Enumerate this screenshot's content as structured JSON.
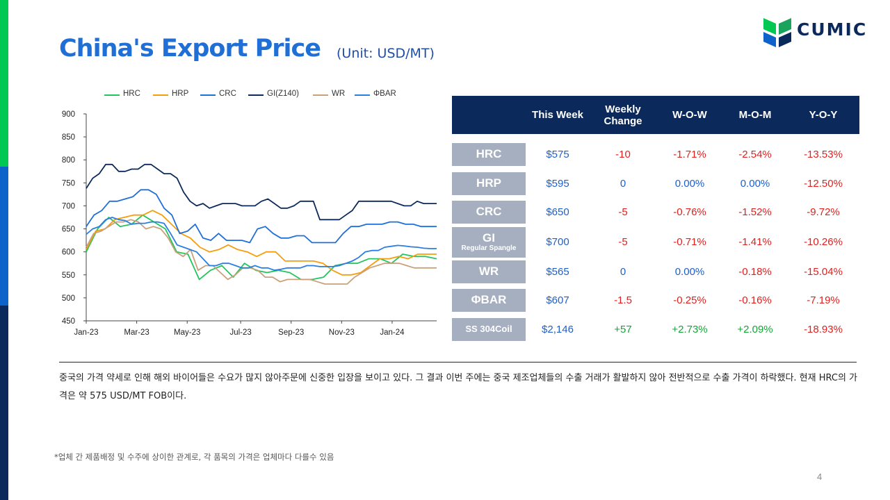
{
  "slide": {
    "title": "China's Export Price",
    "unit": "(Unit: USD/MT)",
    "logo_text": "CUMIC",
    "page_number": "4",
    "commentary": "중국의 가격 약세로 인해 해외 바이어들은 수요가 많지 않아주문에 신중한 입장을 보이고 있다. 그 결과 이번 주에는 중국 제조업체들의 수출 거래가 활발하지 않아 전반적으로 수출 가격이 하락했다. 현재 HRC의 가격은 약 575 USD/MT FOB이다.",
    "footnote": "*업체 간 제품배정 및 수주에 상이한 관계로, 각 품목의 가격은 업체마다 다를수 있음",
    "colors": {
      "accent_green": "#00c853",
      "accent_blue": "#0d63c9",
      "navy": "#0b2a5b",
      "title_blue": "#1f6fd6"
    }
  },
  "table": {
    "headers": [
      "This Week",
      "Weekly\nChange",
      "W-O-W",
      "M-O-M",
      "Y-O-Y"
    ],
    "rows": [
      {
        "label": "HRC",
        "sublabel": "",
        "this_week": "$575",
        "weekly_change": "-10",
        "wow": "-1.71%",
        "mom": "-2.54%",
        "yoy": "-13.53%",
        "change_color": "red",
        "wow_color": "red",
        "mom_color": "red"
      },
      {
        "label": "HRP",
        "sublabel": "",
        "this_week": "$595",
        "weekly_change": "0",
        "wow": "0.00%",
        "mom": "0.00%",
        "yoy": "-12.50%",
        "change_color": "blue",
        "wow_color": "blue",
        "mom_color": "blue"
      },
      {
        "label": "CRC",
        "sublabel": "",
        "this_week": "$650",
        "weekly_change": "-5",
        "wow": "-0.76%",
        "mom": "-1.52%",
        "yoy": "-9.72%",
        "change_color": "red",
        "wow_color": "red",
        "mom_color": "red"
      },
      {
        "label": "GI",
        "sublabel": "Regular Spangle",
        "this_week": "$700",
        "weekly_change": "-5",
        "wow": "-0.71%",
        "mom": "-1.41%",
        "yoy": "-10.26%",
        "change_color": "red",
        "wow_color": "red",
        "mom_color": "red"
      },
      {
        "label": "WR",
        "sublabel": "",
        "this_week": "$565",
        "weekly_change": "0",
        "wow": "0.00%",
        "mom": "-0.18%",
        "yoy": "-15.04%",
        "change_color": "blue",
        "wow_color": "blue",
        "mom_color": "red"
      },
      {
        "label": "ΦBAR",
        "sublabel": "",
        "this_week": "$607",
        "weekly_change": "-1.5",
        "wow": "-0.25%",
        "mom": "-0.16%",
        "yoy": "-7.19%",
        "change_color": "red",
        "wow_color": "red",
        "mom_color": "red"
      },
      {
        "label": "SS 304Coil",
        "sublabel": "",
        "this_week": "$2,146",
        "weekly_change": "+57",
        "wow": "+2.73%",
        "mom": "+2.09%",
        "yoy": "-18.93%",
        "change_color": "green",
        "wow_color": "green",
        "mom_color": "green"
      }
    ]
  },
  "chart_data": {
    "type": "line",
    "title": "",
    "xlabel": "",
    "ylabel": "",
    "ylim": [
      450,
      900
    ],
    "yticks": [
      450,
      500,
      550,
      600,
      650,
      700,
      750,
      800,
      850,
      900
    ],
    "xticks": [
      "Jan-23",
      "Mar-23",
      "May-23",
      "Jul-23",
      "Sep-23",
      "Nov-23",
      "Jan-24"
    ],
    "xtick_weeks": [
      0,
      8.5,
      17,
      26,
      34.5,
      43,
      51.5
    ],
    "n_weeks": 60,
    "grid": false,
    "legend_position": "top",
    "series": [
      {
        "name": "HRC",
        "color": "#22c55e",
        "values": [
          600,
          630,
          640,
          645,
          660,
          670,
          665,
          660,
          655,
          650,
          645,
          650,
          665,
          680,
          680,
          670,
          660,
          655,
          650,
          630,
          610,
          595,
          590,
          590,
          585,
          560,
          540,
          550,
          560,
          560,
          565,
          560,
          550,
          555,
          560,
          560,
          560,
          555,
          555,
          550,
          550,
          550,
          545,
          540,
          545,
          545,
          545,
          550,
          560,
          570,
          575,
          580,
          585,
          585,
          590,
          590,
          590,
          585,
          580,
          575
        ],
        "point_values": [
          600,
          650,
          675,
          655,
          660,
          680,
          665,
          650,
          600,
          595,
          540,
          560,
          570,
          545,
          575,
          560,
          555,
          560,
          555,
          540,
          540,
          545,
          570,
          575,
          575,
          585,
          585,
          575,
          595,
          590,
          590,
          585
        ]
      },
      {
        "name": "HRP",
        "color": "#f59e0b",
        "values": [
          610,
          630,
          645,
          650,
          660,
          665,
          668,
          670,
          672,
          675,
          678,
          680,
          682,
          685,
          688,
          690,
          688,
          685,
          680,
          670,
          660,
          650,
          640,
          630,
          620,
          610,
          605,
          600,
          600,
          600,
          598,
          595,
          592,
          590,
          588,
          585,
          585,
          585,
          582,
          580,
          578,
          575,
          570,
          560,
          555,
          552,
          550,
          550,
          552,
          555,
          560,
          565,
          570,
          575,
          580,
          585,
          590,
          592,
          595,
          595
        ],
        "point_values": [
          605,
          645,
          650,
          670,
          675,
          680,
          680,
          690,
          680,
          660,
          640,
          630,
          610,
          600,
          605,
          615,
          605,
          600,
          590,
          600,
          600,
          580,
          580,
          580,
          580,
          575,
          560,
          550,
          550,
          555,
          570,
          585,
          585,
          590,
          585,
          595,
          595,
          595
        ]
      },
      {
        "name": "CRC",
        "color": "#1f6fd6",
        "values": [
          650,
          660,
          670,
          680,
          690,
          700,
          705,
          710,
          712,
          715,
          718,
          720,
          725,
          730,
          735,
          735,
          730,
          720,
          700,
          680,
          660,
          645,
          640,
          640,
          638,
          635,
          632,
          630,
          628,
          626,
          625,
          625,
          625,
          625,
          630,
          630,
          628,
          625,
          625,
          622,
          620,
          620,
          620,
          620,
          625,
          630,
          635,
          640,
          645,
          650,
          655,
          660,
          662,
          663,
          664,
          664,
          663,
          660,
          658,
          655
        ],
        "point_values": [
          655,
          680,
          690,
          710,
          710,
          715,
          720,
          735,
          735,
          725,
          695,
          680,
          640,
          645,
          660,
          630,
          625,
          640,
          625,
          625,
          625,
          620,
          650,
          655,
          640,
          630,
          630,
          635,
          635,
          620,
          620,
          620,
          620,
          640,
          655,
          655,
          660,
          660,
          660,
          665,
          665,
          660,
          660,
          655,
          655,
          655
        ]
      },
      {
        "name": "GI(Z140)",
        "color": "#0b2a5b",
        "values": [
          738,
          760,
          765,
          775,
          785,
          790,
          790,
          790,
          780,
          775,
          775,
          780,
          785,
          790,
          790,
          785,
          780,
          770,
          760,
          730,
          710,
          700,
          700,
          700,
          705,
          705,
          705,
          705,
          700,
          700,
          700,
          700,
          700,
          700,
          700,
          700,
          700,
          700,
          700,
          695,
          690,
          680,
          675,
          672,
          670,
          672,
          680,
          690,
          700,
          705,
          710,
          710,
          710,
          710,
          710,
          708,
          706,
          705,
          705,
          705
        ],
        "point_values": [
          738,
          760,
          770,
          790,
          790,
          775,
          775,
          780,
          780,
          790,
          790,
          780,
          770,
          770,
          760,
          730,
          710,
          700,
          705,
          695,
          700,
          705,
          705,
          705,
          700,
          700,
          700,
          710,
          715,
          705,
          695,
          695,
          700,
          710,
          710,
          710,
          670,
          670,
          670,
          670,
          680,
          690,
          710,
          710,
          710,
          710,
          710,
          710,
          705,
          700,
          700,
          710,
          705,
          705,
          705
        ]
      },
      {
        "name": "WR",
        "color": "#c9a07a",
        "values": [
          610,
          625,
          635,
          645,
          650,
          655,
          660,
          665,
          665,
          660,
          655,
          650,
          650,
          652,
          655,
          655,
          650,
          645,
          635,
          620,
          605,
          590,
          585,
          580,
          570,
          565,
          560,
          560,
          560,
          560,
          558,
          555,
          552,
          550,
          548,
          545,
          545,
          545,
          545,
          540,
          540,
          538,
          535,
          532,
          532,
          532,
          535,
          540,
          550,
          560,
          565,
          570,
          572,
          574,
          575,
          572,
          568,
          566,
          565,
          565
        ],
        "point_values": [
          610,
          640,
          645,
          655,
          665,
          665,
          670,
          665,
          650,
          655,
          650,
          630,
          600,
          590,
          605,
          560,
          570,
          570,
          555,
          540,
          550,
          565,
          565,
          560,
          545,
          545,
          535,
          540,
          540,
          540,
          540,
          535,
          530,
          530,
          530,
          530,
          545,
          555,
          565,
          570,
          575,
          575,
          575,
          570,
          565,
          565,
          565,
          565
        ]
      },
      {
        "name": "ΦBAR",
        "color": "#2a7de1",
        "values": [
          638,
          645,
          650,
          660,
          668,
          672,
          670,
          665,
          660,
          658,
          657,
          660,
          662,
          665,
          665,
          660,
          655,
          650,
          640,
          625,
          610,
          605,
          600,
          595,
          590,
          585,
          580,
          575,
          572,
          570,
          570,
          570,
          568,
          566,
          565,
          565,
          565,
          565,
          565,
          566,
          567,
          568,
          568,
          570,
          572,
          578,
          585,
          592,
          598,
          602,
          606,
          608,
          610,
          612,
          614,
          613,
          611,
          609,
          608,
          607
        ],
        "point_values": [
          638,
          650,
          655,
          670,
          675,
          670,
          668,
          660,
          662,
          662,
          665,
          665,
          662,
          640,
          615,
          610,
          605,
          600,
          585,
          570,
          570,
          575,
          575,
          570,
          565,
          565,
          570,
          565,
          565,
          560,
          562,
          565,
          565,
          565,
          570,
          570,
          568,
          568,
          568,
          570,
          575,
          580,
          588,
          600,
          603,
          603,
          610,
          612,
          614,
          613,
          611,
          610,
          608,
          607,
          607
        ]
      }
    ]
  }
}
